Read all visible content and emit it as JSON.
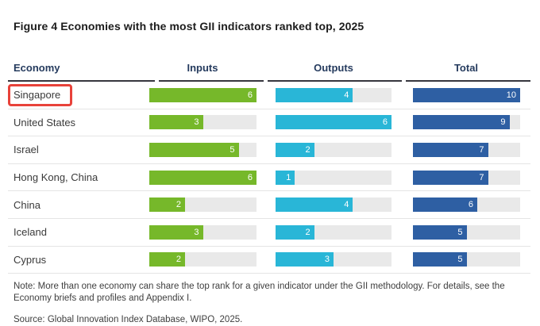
{
  "title": "Figure 4 Economies with the most GII indicators ranked top, 2025",
  "table": {
    "columns": [
      "Economy",
      "Inputs",
      "Outputs",
      "Total"
    ]
  },
  "chart_data": {
    "type": "bar",
    "title": "Figure 4 Economies with the most GII indicators ranked top, 2025",
    "categories": [
      "Singapore",
      "United States",
      "Israel",
      "Hong Kong, China",
      "China",
      "Iceland",
      "Cyprus"
    ],
    "series": [
      {
        "key": "inputs",
        "name": "Inputs",
        "values": [
          6,
          3,
          5,
          6,
          2,
          3,
          2
        ],
        "max": 6,
        "color": "#76b82a"
      },
      {
        "key": "outputs",
        "name": "Outputs",
        "values": [
          4,
          6,
          2,
          1,
          4,
          2,
          3
        ],
        "max": 6,
        "color": "#29b6d7"
      },
      {
        "key": "total",
        "name": "Total",
        "values": [
          10,
          9,
          7,
          7,
          6,
          5,
          5
        ],
        "max": 10,
        "color": "#2e5fa3"
      }
    ],
    "highlight": "Singapore",
    "value_labels": "inside-right",
    "track_color": "#e9e9e9"
  },
  "colors": {
    "inputs_bar": "#76b82a",
    "outputs_bar": "#29b6d7",
    "total_bar": "#2e5fa3",
    "bar_track": "#e9e9e9",
    "highlight_border": "#e8423a",
    "header_text": "#253b5e",
    "header_rule": "#36363e"
  },
  "note": "Note: More than one economy can share the top rank for a given indicator under the GII methodology. For details, see the Economy briefs and profiles and Appendix I.",
  "source": "Source: Global Innovation Index Database, WIPO, 2025."
}
